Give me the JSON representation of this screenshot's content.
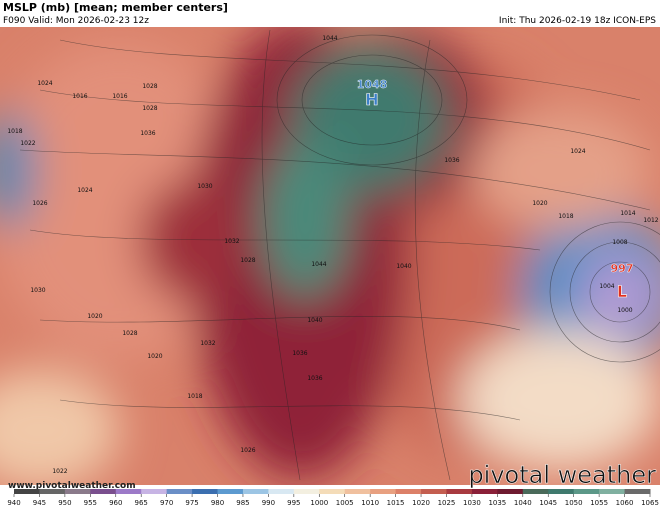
{
  "header": {
    "title": "MSLP (mb) [mean; member centers]",
    "valid": "F090 Valid: Mon 2026-02-23 12z",
    "init": "Init: Thu 2026-02-19 18z ICON-EPS"
  },
  "centers": [
    {
      "value": "1048",
      "type": "H"
    },
    {
      "value": "997",
      "type": "L"
    }
  ],
  "isobar_labels": [
    "1044",
    "1040",
    "1036",
    "1032",
    "1028",
    "1024",
    "1020",
    "1016",
    "1012",
    "1008",
    "1004",
    "1000",
    "1024",
    "1020",
    "1018",
    "1014",
    "1026",
    "1022",
    "1030",
    "1028",
    "1032",
    "1036",
    "1040",
    "1044",
    "1026",
    "1028",
    "1024",
    "1022",
    "1020",
    "1018",
    "1030",
    "1016",
    "1018",
    "1028",
    "1036",
    "1036"
  ],
  "watermark": "www.pivotalweather.com",
  "logo": "pivotal weather",
  "colorbar": {
    "ticks": [
      940,
      945,
      950,
      955,
      960,
      965,
      970,
      975,
      980,
      985,
      990,
      995,
      1000,
      1005,
      1010,
      1015,
      1020,
      1025,
      1030,
      1035,
      1040,
      1045,
      1050,
      1055,
      1060,
      1065
    ]
  }
}
